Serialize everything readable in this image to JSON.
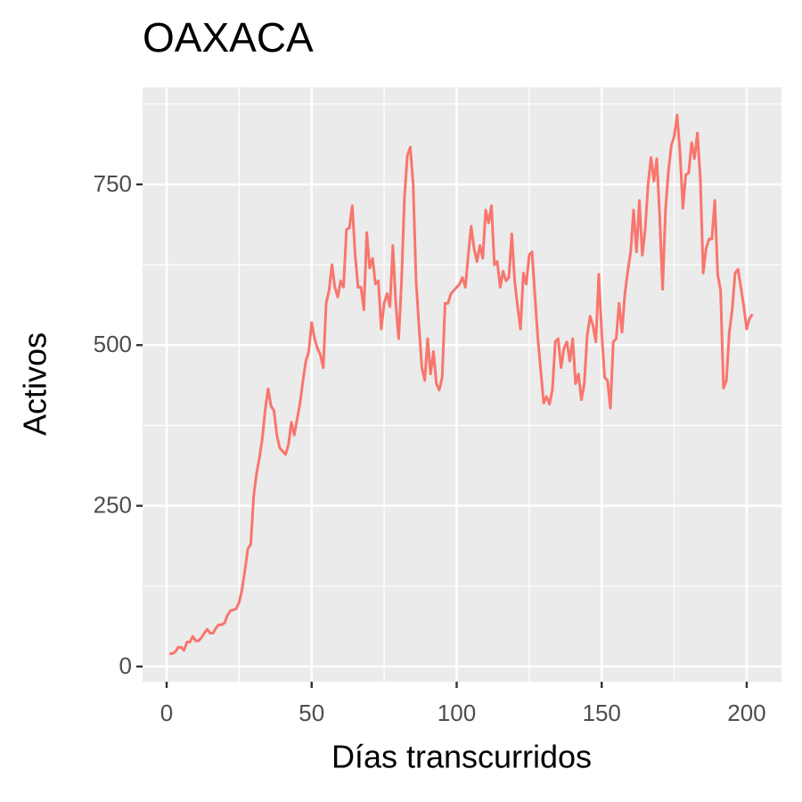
{
  "chart_data": {
    "type": "line",
    "title": "OAXACA",
    "x_label": "Días transcurridos",
    "y_label": "Activos",
    "x": [
      1,
      2,
      3,
      4,
      5,
      6,
      7,
      8,
      9,
      10,
      11,
      12,
      13,
      14,
      15,
      16,
      17,
      18,
      19,
      20,
      21,
      22,
      23,
      24,
      25,
      26,
      27,
      28,
      29,
      30,
      31,
      32,
      33,
      34,
      35,
      36,
      37,
      38,
      39,
      40,
      41,
      42,
      43,
      44,
      45,
      46,
      47,
      48,
      49,
      50,
      51,
      52,
      53,
      54,
      55,
      56,
      57,
      58,
      59,
      60,
      61,
      62,
      63,
      64,
      65,
      66,
      67,
      68,
      69,
      70,
      71,
      72,
      73,
      74,
      75,
      76,
      77,
      78,
      79,
      80,
      81,
      82,
      83,
      84,
      85,
      86,
      87,
      88,
      89,
      90,
      91,
      92,
      93,
      94,
      95,
      96,
      97,
      98,
      99,
      100,
      101,
      102,
      103,
      104,
      105,
      106,
      107,
      108,
      109,
      110,
      111,
      112,
      113,
      114,
      115,
      116,
      117,
      118,
      119,
      120,
      121,
      122,
      123,
      124,
      125,
      126,
      127,
      128,
      129,
      130,
      131,
      132,
      133,
      134,
      135,
      136,
      137,
      138,
      139,
      140,
      141,
      142,
      143,
      144,
      145,
      146,
      147,
      148,
      149,
      150,
      151,
      152,
      153,
      154,
      155,
      156,
      157,
      158,
      159,
      160,
      161,
      162,
      163,
      164,
      165,
      166,
      167,
      168,
      169,
      170,
      171,
      172,
      173,
      174,
      175,
      176,
      177,
      178,
      179,
      180,
      181,
      182,
      183,
      184,
      185,
      186,
      187,
      188,
      189,
      190,
      191,
      192,
      193,
      194,
      195,
      196,
      197,
      198,
      199,
      200,
      201,
      202
    ],
    "series": [
      {
        "name": "OAXACA",
        "color": "#F8766D",
        "values": [
          20,
          20,
          23,
          30,
          30,
          25,
          38,
          38,
          47,
          40,
          40,
          45,
          52,
          58,
          52,
          52,
          60,
          65,
          65,
          68,
          80,
          87,
          88,
          90,
          100,
          120,
          150,
          183,
          190,
          265,
          300,
          325,
          355,
          400,
          432,
          405,
          398,
          360,
          340,
          335,
          330,
          345,
          380,
          360,
          385,
          410,
          445,
          475,
          490,
          535,
          510,
          495,
          485,
          465,
          565,
          585,
          625,
          590,
          575,
          600,
          590,
          680,
          682,
          717,
          640,
          590,
          590,
          555,
          675,
          620,
          635,
          595,
          600,
          525,
          565,
          580,
          560,
          655,
          565,
          510,
          600,
          730,
          795,
          808,
          750,
          600,
          530,
          465,
          445,
          510,
          455,
          490,
          440,
          430,
          450,
          565,
          565,
          580,
          585,
          590,
          595,
          605,
          590,
          640,
          685,
          650,
          630,
          655,
          635,
          710,
          690,
          717,
          625,
          630,
          590,
          615,
          600,
          605,
          673,
          600,
          560,
          525,
          612,
          595,
          640,
          645,
          575,
          510,
          460,
          410,
          420,
          408,
          430,
          505,
          510,
          465,
          495,
          505,
          475,
          510,
          440,
          455,
          415,
          440,
          515,
          545,
          530,
          505,
          610,
          520,
          450,
          445,
          402,
          505,
          510,
          565,
          520,
          580,
          615,
          645,
          710,
          645,
          725,
          640,
          680,
          750,
          792,
          755,
          790,
          700,
          587,
          710,
          770,
          810,
          825,
          858,
          800,
          713,
          765,
          768,
          815,
          790,
          830,
          760,
          612,
          650,
          665,
          665,
          725,
          610,
          585,
          433,
          445,
          520,
          555,
          612,
          618,
          590,
          560,
          525,
          542,
          548
        ]
      }
    ],
    "xlim": [
      -8.3,
      212
    ],
    "ylim": [
      -23.6,
      901
    ],
    "xticks": [
      0,
      50,
      100,
      150,
      200
    ],
    "yticks": [
      0,
      250,
      500,
      750
    ],
    "x_minor_grid": [
      25,
      75,
      125,
      175
    ],
    "y_minor_grid": [
      125,
      375,
      625,
      875
    ],
    "grid": true,
    "legend": false
  }
}
